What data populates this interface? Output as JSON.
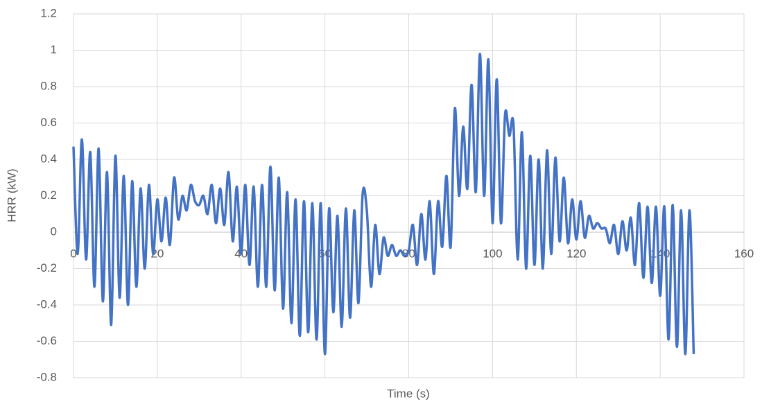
{
  "chart_data": {
    "type": "line",
    "x_label": "Time (s)",
    "y_label": "HRR (kW)",
    "x": [
      0,
      1,
      2,
      3,
      4,
      5,
      6,
      7,
      8,
      9,
      10,
      11,
      12,
      13,
      14,
      15,
      16,
      17,
      18,
      19,
      20,
      21,
      22,
      23,
      24,
      25,
      26,
      27,
      28,
      29,
      30,
      31,
      32,
      33,
      34,
      35,
      36,
      37,
      38,
      39,
      40,
      41,
      42,
      43,
      44,
      45,
      46,
      47,
      48,
      49,
      50,
      51,
      52,
      53,
      54,
      55,
      56,
      57,
      58,
      59,
      60,
      61,
      62,
      63,
      64,
      65,
      66,
      67,
      68,
      69,
      70,
      71,
      72,
      73,
      74,
      75,
      76,
      77,
      78,
      79,
      80,
      81,
      82,
      83,
      84,
      85,
      86,
      87,
      88,
      89,
      90,
      91,
      92,
      93,
      94,
      95,
      96,
      97,
      98,
      99,
      100,
      101,
      102,
      103,
      104,
      105,
      106,
      107,
      108,
      109,
      110,
      111,
      112,
      113,
      114,
      115,
      116,
      117,
      118,
      119,
      120,
      121,
      122,
      123,
      124,
      125,
      126,
      127,
      128,
      129,
      130,
      131,
      132,
      133,
      134,
      135,
      136,
      137,
      138,
      139,
      140,
      141,
      142,
      143,
      144,
      145,
      146,
      147,
      148
    ],
    "series": [
      {
        "name": "HRR",
        "color": "#4472c4",
        "values": [
          0.47,
          -0.12,
          0.51,
          -0.15,
          0.44,
          -0.3,
          0.46,
          -0.38,
          0.33,
          -0.51,
          0.42,
          -0.36,
          0.31,
          -0.4,
          0.28,
          -0.3,
          0.24,
          -0.2,
          0.26,
          -0.12,
          0.18,
          -0.05,
          0.19,
          -0.07,
          0.3,
          0.07,
          0.2,
          0.12,
          0.26,
          0.17,
          0.15,
          0.2,
          0.1,
          0.26,
          0.05,
          0.24,
          0.04,
          0.33,
          -0.05,
          0.25,
          -0.12,
          0.26,
          -0.18,
          0.25,
          -0.3,
          0.26,
          -0.3,
          0.36,
          -0.32,
          0.3,
          -0.42,
          0.22,
          -0.5,
          0.18,
          -0.57,
          0.17,
          -0.55,
          0.16,
          -0.59,
          0.16,
          -0.67,
          0.13,
          -0.44,
          0.09,
          -0.52,
          0.13,
          -0.47,
          0.12,
          -0.39,
          0.21,
          0.12,
          -0.3,
          0.04,
          -0.23,
          -0.03,
          -0.13,
          -0.07,
          -0.13,
          -0.1,
          -0.13,
          -0.1,
          0.04,
          -0.18,
          0.1,
          -0.15,
          0.17,
          -0.23,
          0.17,
          -0.08,
          0.31,
          -0.08,
          0.68,
          0.2,
          0.58,
          0.24,
          0.81,
          0.22,
          0.98,
          0.2,
          0.95,
          0.05,
          0.84,
          0.05,
          0.65,
          0.53,
          0.59,
          -0.15,
          0.55,
          -0.2,
          0.42,
          -0.18,
          0.4,
          -0.2,
          0.45,
          -0.12,
          0.41,
          -0.05,
          0.3,
          -0.06,
          0.18,
          -0.04,
          0.17,
          -0.03,
          0.09,
          0.02,
          0.05,
          0.02,
          0.02,
          -0.06,
          0.04,
          -0.12,
          0.06,
          -0.1,
          0.08,
          -0.18,
          0.16,
          -0.25,
          0.14,
          -0.28,
          0.14,
          -0.35,
          0.14,
          -0.59,
          0.15,
          -0.63,
          0.12,
          -0.67,
          0.12,
          -0.67
        ]
      }
    ],
    "xlim": [
      0,
      160
    ],
    "xticks": [
      0,
      20,
      40,
      60,
      80,
      100,
      120,
      140,
      160
    ],
    "ylim": [
      -0.8,
      1.2
    ],
    "yticks": [
      -0.8,
      -0.6,
      -0.4,
      -0.2,
      0,
      0.2,
      0.4,
      0.6,
      0.8,
      1,
      1.2
    ],
    "grid": true
  }
}
